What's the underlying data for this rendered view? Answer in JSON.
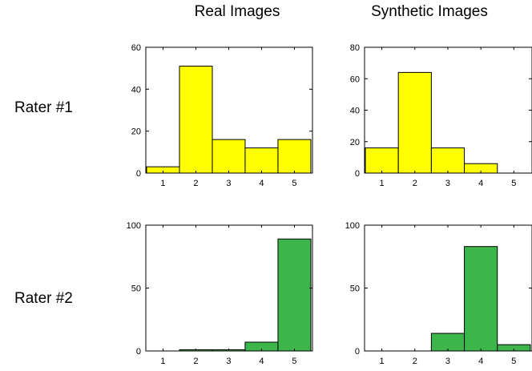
{
  "column_titles": [
    "Real Images",
    "Synthetic Images"
  ],
  "row_labels": [
    "Rater #1",
    "Rater #2"
  ],
  "colors": {
    "rater1": "#ffff00",
    "rater2": "#3cb54a",
    "outline": "#000000"
  },
  "chart_data": [
    {
      "type": "bar",
      "categories": [
        "1",
        "2",
        "3",
        "4",
        "5"
      ],
      "values": [
        3,
        51,
        16,
        12,
        16
      ],
      "ylim": [
        0,
        60
      ],
      "yticks": [
        0,
        20,
        40,
        60
      ],
      "color": "#ffff00"
    },
    {
      "type": "bar",
      "categories": [
        "1",
        "2",
        "3",
        "4",
        "5"
      ],
      "values": [
        16,
        64,
        16,
        6,
        0
      ],
      "ylim": [
        0,
        80
      ],
      "yticks": [
        0,
        20,
        40,
        60,
        80
      ],
      "color": "#ffff00"
    },
    {
      "type": "bar",
      "categories": [
        "1",
        "2",
        "3",
        "4",
        "5"
      ],
      "values": [
        0,
        1,
        1,
        7,
        89
      ],
      "ylim": [
        0,
        100
      ],
      "yticks": [
        0,
        50,
        100
      ],
      "color": "#3cb54a"
    },
    {
      "type": "bar",
      "categories": [
        "1",
        "2",
        "3",
        "4",
        "5"
      ],
      "values": [
        0,
        0,
        14,
        83,
        5
      ],
      "ylim": [
        0,
        100
      ],
      "yticks": [
        0,
        50,
        100
      ],
      "color": "#3cb54a"
    }
  ]
}
